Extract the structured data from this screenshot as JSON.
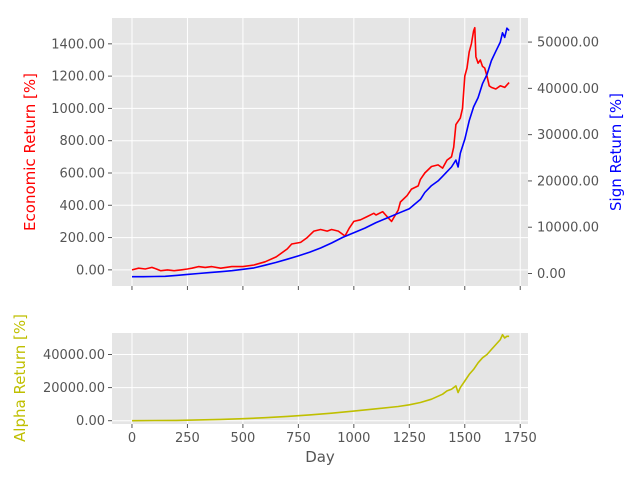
{
  "chart_data": {
    "type": "line",
    "xlabel": "Day",
    "x_ticks": [
      0,
      250,
      500,
      750,
      1000,
      1250,
      1500,
      1750
    ],
    "x_range": [
      -90,
      1785
    ],
    "top_panel": {
      "left_axis": {
        "label": "Economic Return [%]",
        "color": "#ff0000",
        "ylim": [
          -100,
          1560
        ],
        "ticks": [
          0,
          200,
          400,
          600,
          800,
          1000,
          1200,
          1400
        ],
        "tick_labels": [
          "0.00",
          "200.00",
          "400.00",
          "600.00",
          "800.00",
          "1000.00",
          "1200.00",
          "1400.00"
        ]
      },
      "right_axis": {
        "label": "Sign Return [%]",
        "color": "#0000ff",
        "ylim": [
          -2700,
          55200
        ],
        "ticks": [
          0,
          10000,
          20000,
          30000,
          40000,
          50000
        ],
        "tick_labels": [
          "0.00",
          "10000.00",
          "20000.00",
          "30000.00",
          "40000.00",
          "50000.00"
        ]
      },
      "series": [
        {
          "name": "Economic Return",
          "axis": "left",
          "color": "#ff0000",
          "x": [
            0,
            30,
            60,
            90,
            110,
            130,
            160,
            190,
            220,
            250,
            270,
            300,
            330,
            360,
            400,
            450,
            500,
            550,
            600,
            650,
            700,
            720,
            760,
            790,
            820,
            850,
            880,
            900,
            930,
            960,
            980,
            1000,
            1030,
            1060,
            1090,
            1100,
            1130,
            1150,
            1170,
            1200,
            1210,
            1240,
            1260,
            1290,
            1300,
            1320,
            1350,
            1380,
            1400,
            1420,
            1440,
            1450,
            1460,
            1470,
            1480,
            1490,
            1500,
            1510,
            1520,
            1530,
            1540,
            1545,
            1550,
            1560,
            1570,
            1580,
            1590,
            1600,
            1610,
            1620,
            1640,
            1660,
            1680,
            1700
          ],
          "y": [
            0,
            10,
            5,
            15,
            5,
            -5,
            0,
            -5,
            0,
            5,
            10,
            20,
            15,
            20,
            10,
            20,
            20,
            30,
            50,
            80,
            130,
            160,
            170,
            200,
            240,
            250,
            240,
            250,
            240,
            210,
            260,
            300,
            310,
            330,
            350,
            340,
            360,
            330,
            300,
            370,
            420,
            460,
            500,
            520,
            560,
            600,
            640,
            650,
            630,
            680,
            700,
            760,
            900,
            920,
            940,
            1000,
            1200,
            1250,
            1350,
            1400,
            1480,
            1500,
            1320,
            1280,
            1300,
            1260,
            1250,
            1200,
            1140,
            1130,
            1120,
            1140,
            1130,
            1160
          ]
        },
        {
          "name": "Sign Return",
          "axis": "right",
          "color": "#0000ff",
          "x": [
            0,
            50,
            100,
            150,
            200,
            250,
            300,
            350,
            400,
            450,
            500,
            550,
            600,
            650,
            700,
            750,
            800,
            850,
            900,
            950,
            1000,
            1050,
            1100,
            1150,
            1200,
            1250,
            1300,
            1320,
            1350,
            1380,
            1400,
            1420,
            1440,
            1460,
            1470,
            1480,
            1500,
            1520,
            1540,
            1560,
            1580,
            1600,
            1620,
            1640,
            1660,
            1670,
            1680,
            1690,
            1700
          ],
          "y": [
            -700,
            -700,
            -650,
            -600,
            -400,
            -200,
            0,
            200,
            400,
            600,
            900,
            1200,
            1800,
            2400,
            3100,
            3800,
            4600,
            5500,
            6600,
            7800,
            8800,
            9800,
            11000,
            12000,
            13000,
            14000,
            16000,
            17500,
            19000,
            20000,
            21000,
            22000,
            23000,
            24500,
            23000,
            26000,
            29000,
            33000,
            36000,
            38000,
            41000,
            43000,
            46000,
            48000,
            50000,
            52000,
            51000,
            53000,
            52500
          ]
        }
      ]
    },
    "bottom_panel": {
      "left_axis": {
        "label": "Alpha Return [%]",
        "color": "#bfbf00",
        "ylim": [
          -2000,
          53000
        ],
        "ticks": [
          0,
          20000,
          40000
        ],
        "tick_labels": [
          "0.00",
          "20000.00",
          "40000.00"
        ]
      },
      "series": [
        {
          "name": "Alpha Return",
          "axis": "left",
          "color": "#bfbf00",
          "x": [
            0,
            100,
            200,
            300,
            400,
            500,
            600,
            700,
            800,
            900,
            1000,
            1100,
            1200,
            1250,
            1300,
            1350,
            1400,
            1420,
            1440,
            1460,
            1470,
            1480,
            1500,
            1520,
            1540,
            1560,
            1580,
            1600,
            1620,
            1640,
            1660,
            1670,
            1680,
            1690,
            1700
          ],
          "y": [
            0,
            100,
            200,
            500,
            800,
            1200,
            1800,
            2600,
            3500,
            4500,
            5800,
            7200,
            8600,
            9600,
            11000,
            13000,
            16000,
            18000,
            19000,
            21000,
            17000,
            20000,
            24000,
            28000,
            31000,
            35000,
            38000,
            40000,
            43000,
            46000,
            49000,
            52000,
            50000,
            51000,
            51000
          ]
        }
      ]
    }
  }
}
